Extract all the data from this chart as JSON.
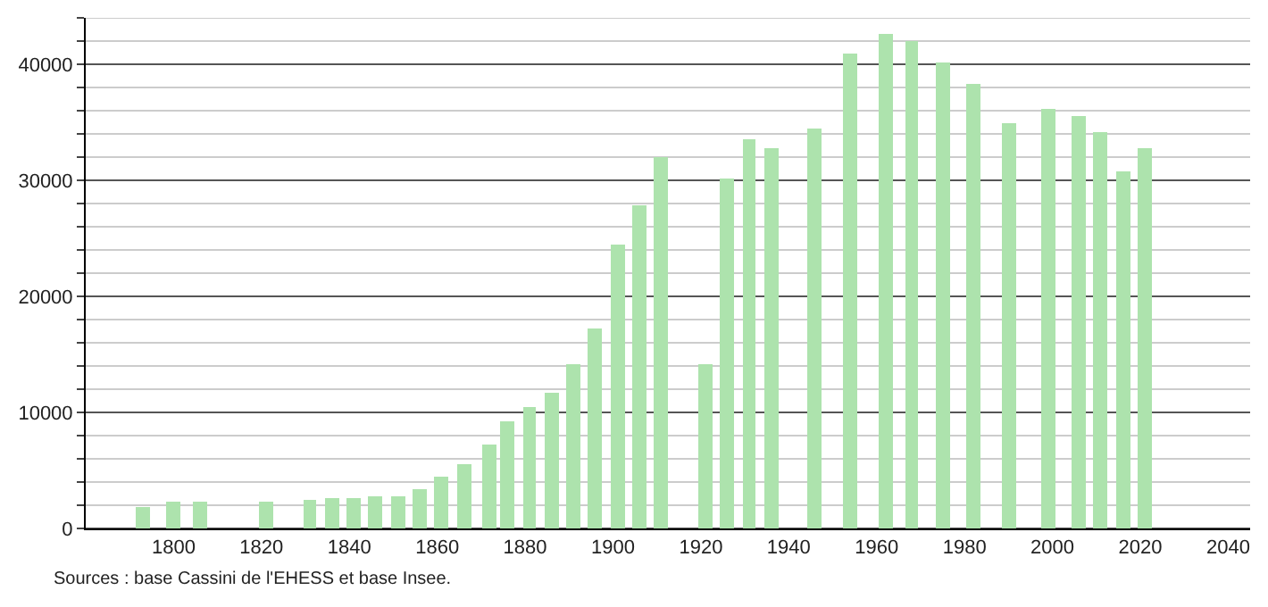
{
  "chart_data": {
    "type": "bar",
    "x": [
      1793,
      1800,
      1806,
      1821,
      1831,
      1836,
      1841,
      1846,
      1851,
      1856,
      1861,
      1866,
      1872,
      1876,
      1881,
      1886,
      1891,
      1896,
      1901,
      1906,
      1911,
      1921,
      1926,
      1931,
      1936,
      1946,
      1954,
      1962,
      1968,
      1975,
      1982,
      1990,
      1999,
      2006,
      2011,
      2016,
      2021
    ],
    "values": [
      1900,
      2300,
      2300,
      2300,
      2500,
      2600,
      2600,
      2700,
      2700,
      3400,
      4400,
      5600,
      7300,
      9300,
      10500,
      11700,
      14100,
      17200,
      24400,
      27800,
      32000,
      14100,
      30200,
      33500,
      32700,
      34400,
      40900,
      42600,
      42000,
      40200,
      38300,
      35000,
      36200,
      35600,
      34200,
      30800,
      32700
    ],
    "color": "#ade3ad",
    "xlim": [
      1780,
      2045
    ],
    "xticks": [
      1800,
      1820,
      1840,
      1860,
      1880,
      1900,
      1920,
      1940,
      1960,
      1980,
      2000,
      2020,
      2040
    ],
    "ylim": [
      0,
      44000
    ],
    "yticks": [
      0,
      {
        "value": 2000,
        "label": null
      },
      {
        "value": 4000,
        "label": null
      },
      {
        "value": 6000,
        "label": null
      },
      {
        "value": 8000,
        "label": null
      },
      10000,
      {
        "value": 12000,
        "label": null
      },
      {
        "value": 14000,
        "label": null
      },
      {
        "value": 16000,
        "label": null
      },
      {
        "value": 18000,
        "label": null
      },
      20000,
      {
        "value": 22000,
        "label": null
      },
      {
        "value": 24000,
        "label": null
      },
      {
        "value": 26000,
        "label": null
      },
      {
        "value": 28000,
        "label": null
      },
      30000,
      {
        "value": 32000,
        "label": null
      },
      {
        "value": 34000,
        "label": null
      },
      {
        "value": 36000,
        "label": null
      },
      {
        "value": 38000,
        "label": null
      },
      40000,
      {
        "value": 42000,
        "label": null
      },
      {
        "value": 44000,
        "label": null
      }
    ],
    "grid": "y",
    "annotations": [
      "Sources : base Cassini de l'EHESS et base Insee."
    ]
  }
}
